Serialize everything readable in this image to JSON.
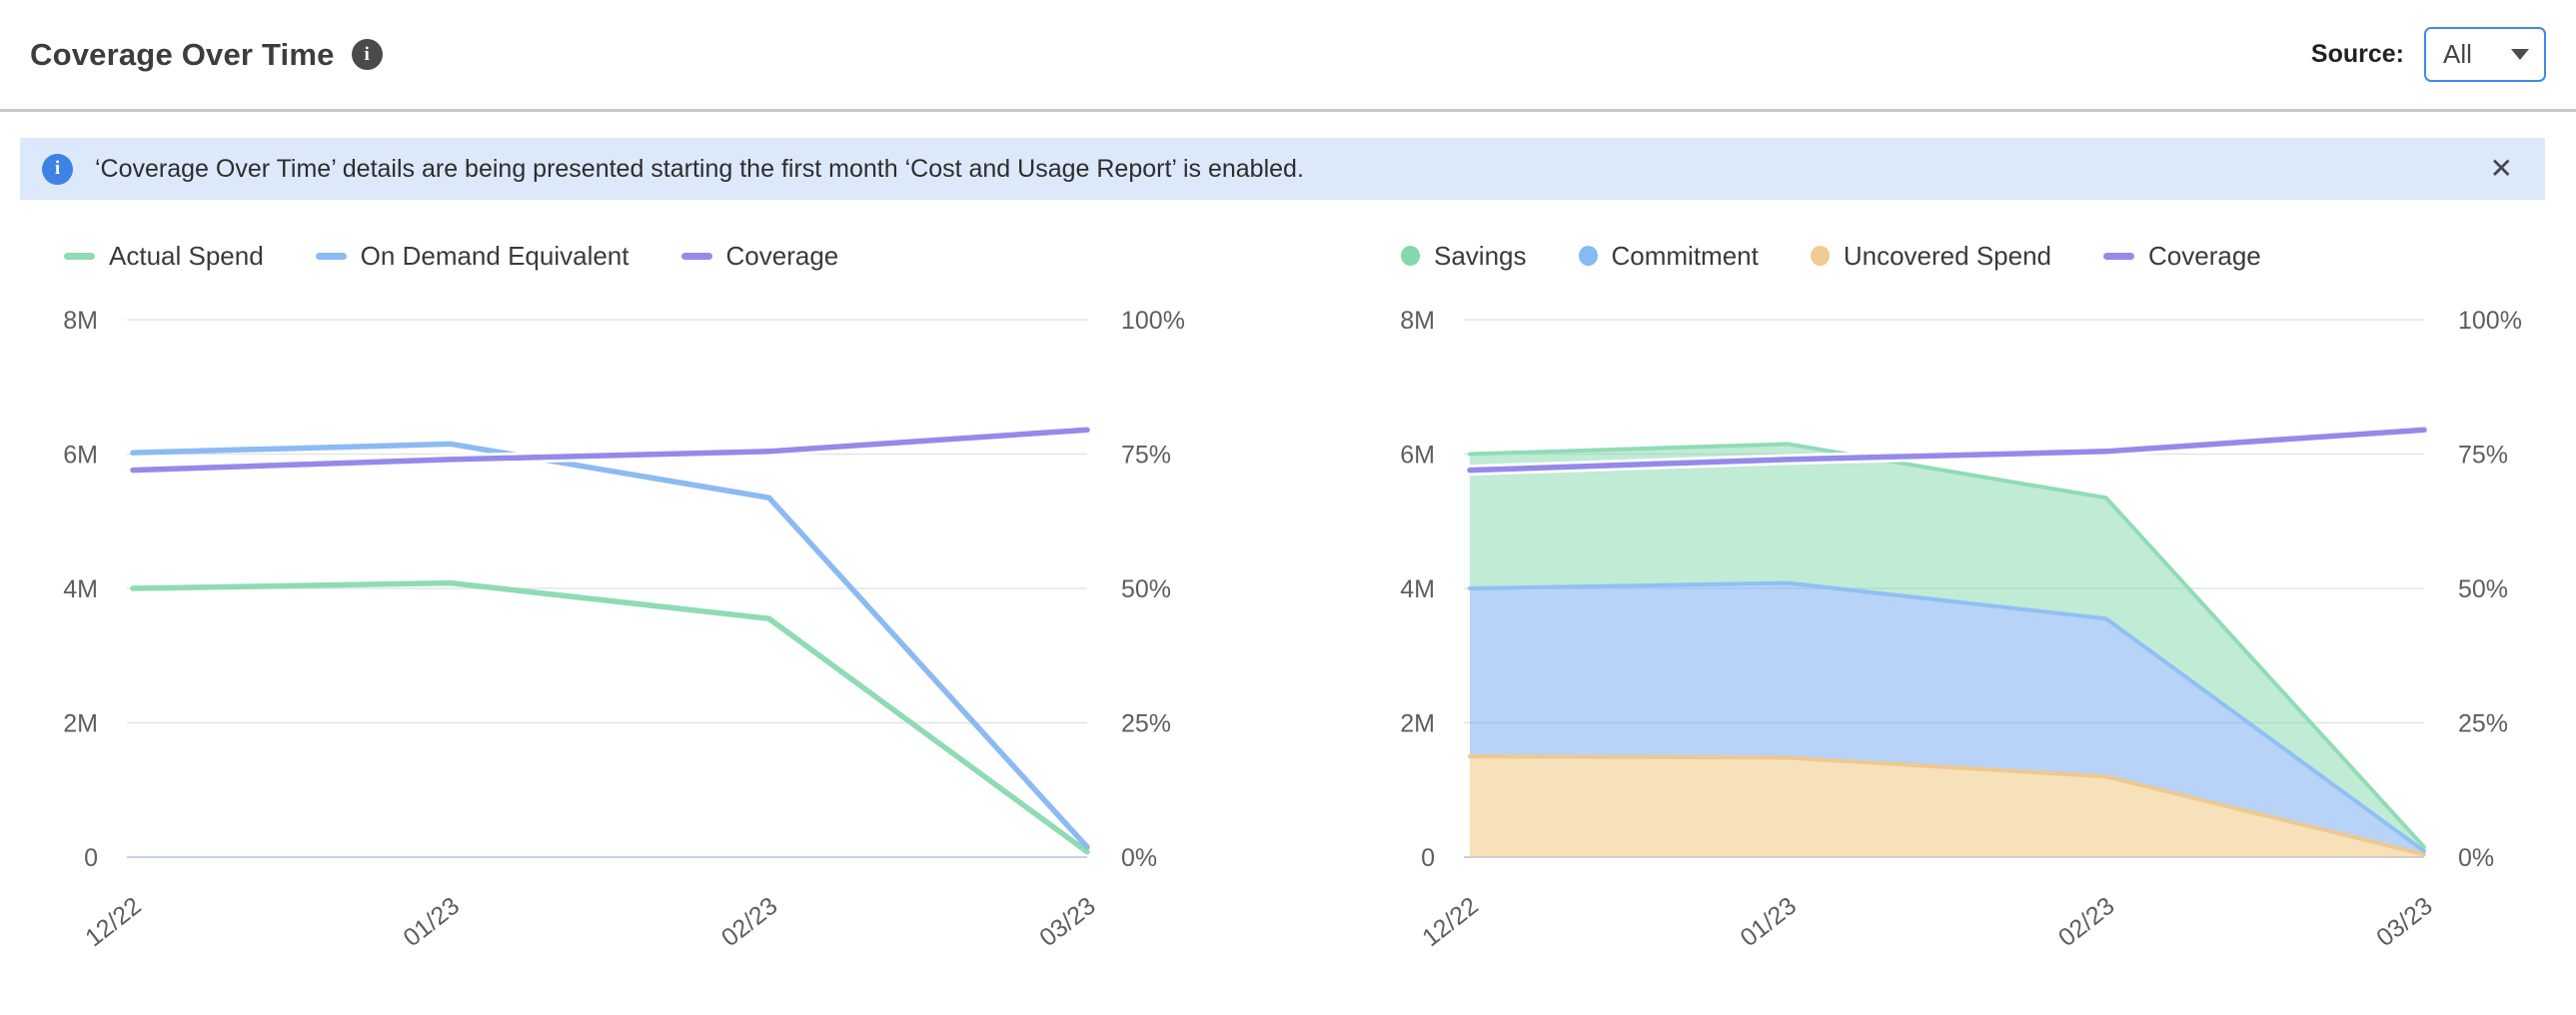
{
  "header": {
    "title": "Coverage Over Time",
    "info_icon": "i",
    "source_label": "Source:",
    "source_value": "All"
  },
  "banner": {
    "icon": "i",
    "text": "‘Coverage Over Time’ details are being presented starting the first month ‘Cost and Usage Report’ is enabled.",
    "close_label": "✕"
  },
  "colors": {
    "accent_blue": "#3f8ae8",
    "banner_bg": "#dce9fb",
    "banner_icon_bg": "#3e82e4",
    "header_info_bg": "#4a4a4a",
    "grid": "#e4e4e8",
    "baseline": "#c5d3ea",
    "axis_text": "#5e5e5e",
    "green": "#8edbb4",
    "blue": "#8cbaf2",
    "purple": "#9589ea",
    "orange": "#f0ca92"
  },
  "chart_data": [
    {
      "type": "line",
      "title": "",
      "categories": [
        "12/22",
        "01/23",
        "02/23",
        "03/23"
      ],
      "left_axis": {
        "unit": "M",
        "max": 8,
        "ticks": [
          "0",
          "2M",
          "4M",
          "6M",
          "8M"
        ]
      },
      "right_axis": {
        "unit": "%",
        "max": 100,
        "ticks": [
          "0%",
          "25%",
          "50%",
          "75%",
          "100%"
        ]
      },
      "grid": true,
      "legend_position": "top-left",
      "legend": [
        {
          "label": "Actual Spend",
          "marker": "dash",
          "color": "#8edbb4"
        },
        {
          "label": "On Demand Equivalent",
          "marker": "dash",
          "color": "#8cbaf2"
        },
        {
          "label": "Coverage",
          "marker": "dash",
          "color": "#9589ea"
        }
      ],
      "series": [
        {
          "name": "Actual Spend",
          "axis": "left",
          "color": "#8edbb4",
          "values": [
            4.0,
            4.08,
            3.55,
            0.08
          ]
        },
        {
          "name": "On Demand Equivalent",
          "axis": "left",
          "color": "#8cbaf2",
          "values": [
            6.02,
            6.15,
            5.35,
            0.15
          ]
        },
        {
          "name": "Coverage",
          "axis": "right",
          "color": "#9589ea",
          "halo": true,
          "values": [
            72,
            74,
            75.5,
            79.5
          ]
        }
      ]
    },
    {
      "type": "stacked-area",
      "title": "",
      "categories": [
        "12/22",
        "01/23",
        "02/23",
        "03/23"
      ],
      "left_axis": {
        "unit": "M",
        "max": 8,
        "ticks": [
          "0",
          "2M",
          "4M",
          "6M",
          "8M"
        ]
      },
      "right_axis": {
        "unit": "%",
        "max": 100,
        "ticks": [
          "0%",
          "25%",
          "50%",
          "75%",
          "100%"
        ]
      },
      "grid": true,
      "legend_position": "top-left",
      "legend": [
        {
          "label": "Savings",
          "marker": "dot",
          "color": "#85d7ac"
        },
        {
          "label": "Commitment",
          "marker": "dot",
          "color": "#85baf2"
        },
        {
          "label": "Uncovered Spend",
          "marker": "dot",
          "color": "#f0ca92"
        },
        {
          "label": "Coverage",
          "marker": "dash",
          "color": "#9589ea"
        }
      ],
      "series": [
        {
          "name": "Uncovered Spend",
          "axis": "left",
          "stack": true,
          "fill": "rgba(240,196,118,0.50)",
          "edge": "#eec88f",
          "values": [
            1.5,
            1.48,
            1.2,
            0.04
          ]
        },
        {
          "name": "Commitment",
          "axis": "left",
          "stack": true,
          "fill": "rgba(96,158,238,0.45)",
          "edge": "#8fc0f5",
          "values": [
            2.5,
            2.6,
            2.35,
            0.05
          ]
        },
        {
          "name": "Savings",
          "axis": "left",
          "stack": true,
          "fill": "rgba(105,207,156,0.42)",
          "edge": "#8fdcb5",
          "values": [
            2.0,
            2.07,
            1.8,
            0.06
          ]
        },
        {
          "name": "Coverage",
          "axis": "right",
          "color": "#9589ea",
          "halo": true,
          "values": [
            72,
            74,
            75.5,
            79.5
          ]
        }
      ]
    }
  ]
}
